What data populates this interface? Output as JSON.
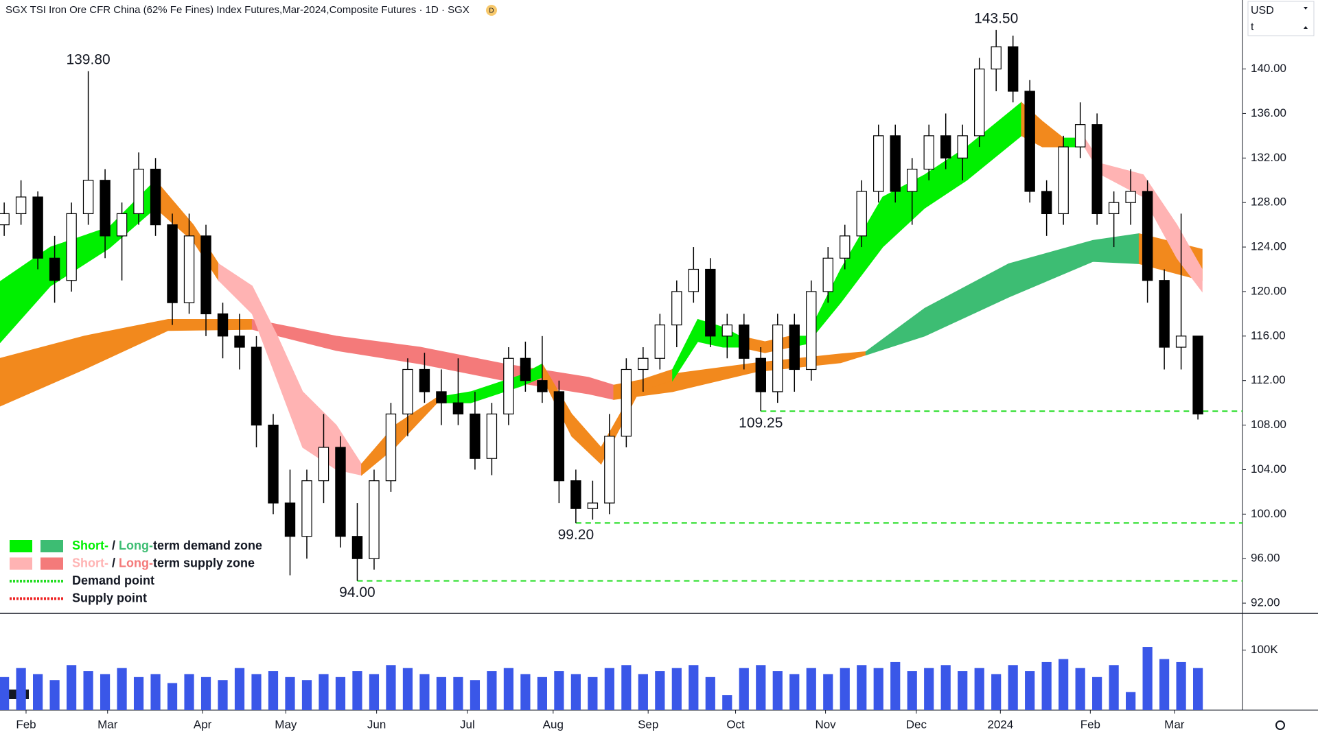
{
  "header": {
    "title": "SGX TSI Iron Ore CFR China (62% Fe Fines) Index Futures,Mar-2024,Composite Futures · 1D · SGX",
    "badge": "D",
    "currency": "USD",
    "unit": "t"
  },
  "chart_data": {
    "type": "candlestick",
    "x": [
      0,
      1,
      2,
      3,
      4,
      5,
      6,
      7,
      8,
      9,
      10,
      11,
      12,
      13,
      14,
      15,
      16,
      17,
      18,
      19,
      20,
      21,
      22,
      23,
      24,
      25,
      26,
      27,
      28,
      29,
      30,
      31,
      32,
      33,
      34,
      35,
      36,
      37,
      38,
      39,
      40,
      41,
      42,
      43,
      44,
      45,
      46,
      47,
      48,
      49,
      50,
      51,
      52,
      53,
      54,
      55,
      56,
      57,
      58,
      59,
      60,
      61,
      62,
      63,
      64,
      65,
      66,
      67,
      68,
      69,
      70,
      71
    ],
    "open": [
      126,
      127,
      128.5,
      123,
      121,
      127,
      130,
      125,
      127,
      131,
      126,
      119,
      125,
      118,
      116,
      115,
      108,
      101,
      98,
      103,
      106,
      98,
      96,
      103,
      109,
      113,
      111,
      110,
      109,
      105,
      109,
      114,
      112,
      111,
      103,
      100.5,
      101,
      107,
      113,
      114,
      117,
      120,
      122,
      116,
      117,
      114,
      111,
      117,
      113,
      120,
      123,
      125,
      129,
      134,
      129,
      131,
      134,
      132,
      134,
      140,
      142,
      138,
      129,
      127,
      133,
      135,
      127,
      128,
      129,
      121,
      115,
      116
    ],
    "high": [
      128,
      130,
      129,
      125,
      128,
      139.8,
      131,
      128,
      132.5,
      132,
      127,
      127,
      126,
      119,
      118,
      116,
      109,
      104,
      104,
      109,
      107,
      101,
      104,
      110,
      114,
      114.5,
      113,
      114,
      111,
      110,
      115,
      115.5,
      116,
      112,
      104,
      103,
      109,
      114,
      115,
      118,
      121,
      124,
      123,
      118,
      118,
      115,
      118,
      118,
      121,
      124,
      126,
      130,
      135,
      135,
      132,
      135,
      136,
      135,
      141,
      143.5,
      143,
      139,
      130,
      134,
      137,
      136,
      129,
      131,
      130,
      122,
      127,
      116
    ],
    "low": [
      125,
      126,
      122,
      119,
      120,
      126,
      123,
      121,
      126,
      125,
      117,
      118,
      116,
      114,
      113,
      106,
      100,
      94.5,
      96,
      101,
      97,
      94,
      95,
      102,
      107,
      110,
      108,
      108,
      104,
      103.5,
      108,
      111,
      110,
      101,
      99.2,
      99.5,
      100,
      106,
      111,
      113,
      115,
      119,
      115,
      114,
      113,
      109.25,
      110,
      111,
      112,
      119,
      122,
      124,
      128,
      128,
      126,
      130,
      131,
      130,
      133,
      138,
      137,
      128,
      125,
      126,
      132,
      126,
      124,
      126,
      119,
      113,
      113,
      108.5
    ],
    "close": [
      127,
      128.5,
      123,
      121,
      127,
      130,
      125,
      127,
      131,
      126,
      119,
      125,
      118,
      116,
      115,
      108,
      101,
      98,
      103,
      106,
      98,
      96,
      103,
      109,
      113,
      111,
      110,
      109,
      105,
      109,
      114,
      112,
      111,
      103,
      100.5,
      101,
      107,
      113,
      114,
      117,
      120,
      122,
      116,
      117,
      114,
      111,
      117,
      113,
      120,
      123,
      125,
      129,
      134,
      129,
      131,
      134,
      132,
      134,
      140,
      142,
      138,
      129,
      127,
      133,
      135,
      127,
      128,
      129,
      121,
      115,
      116,
      109
    ],
    "up_color": "#ffffff",
    "down_color": "#000000",
    "xlim": [
      -0.25,
      73.65
    ],
    "xticks": [
      {
        "value": 1.3,
        "label": "Feb"
      },
      {
        "value": 6.15,
        "label": "Mar"
      },
      {
        "value": 11.8,
        "label": "Apr"
      },
      {
        "value": 16.75,
        "label": "May"
      },
      {
        "value": 22.15,
        "label": "Jun"
      },
      {
        "value": 27.55,
        "label": "Jul"
      },
      {
        "value": 32.65,
        "label": "Aug"
      },
      {
        "value": 38.3,
        "label": "Sep"
      },
      {
        "value": 43.5,
        "label": "Oct"
      },
      {
        "value": 48.85,
        "label": "Nov"
      },
      {
        "value": 54.25,
        "label": "Dec"
      },
      {
        "value": 59.25,
        "label": "2024"
      },
      {
        "value": 64.6,
        "label": "Feb"
      },
      {
        "value": 69.6,
        "label": "Mar"
      }
    ],
    "ylim": [
      91.08,
      146.2
    ],
    "yticks": [
      {
        "value": 92,
        "label": "92.00"
      },
      {
        "value": 96,
        "label": "96.00"
      },
      {
        "value": 100,
        "label": "100.00"
      },
      {
        "value": 104,
        "label": "104.00"
      },
      {
        "value": 108,
        "label": "108.00"
      },
      {
        "value": 112,
        "label": "112.00"
      },
      {
        "value": 116,
        "label": "116.00"
      },
      {
        "value": 120,
        "label": "120.00"
      },
      {
        "value": 124,
        "label": "124.00"
      },
      {
        "value": 128,
        "label": "128.00"
      },
      {
        "value": 132,
        "label": "132.00"
      },
      {
        "value": 136,
        "label": "136.00"
      },
      {
        "value": 140,
        "label": "140.00"
      }
    ],
    "zones": [
      {
        "color": "#f2891d",
        "x": [
          -0.25,
          4.75,
          9.75,
          14.75
        ],
        "upper": [
          114,
          116,
          117.5,
          117.5
        ],
        "lower": [
          109.7,
          113,
          116.5,
          116.6
        ]
      },
      {
        "color": "#f47a7a",
        "x": [
          14.75,
          19.75,
          24.75,
          29.75,
          34.75,
          36.25
        ],
        "upper": [
          117.5,
          116,
          115,
          113.5,
          112.3,
          111.6
        ],
        "lower": [
          116.6,
          114.7,
          113.5,
          112,
          110.8,
          110.3
        ]
      },
      {
        "color": "#f2891d",
        "x": [
          36.25,
          39.75,
          44.75,
          49.75,
          51.25
        ],
        "upper": [
          111.6,
          112.6,
          113.6,
          114.4,
          114.6
        ],
        "lower": [
          110.3,
          111,
          112.8,
          113.6,
          114.3
        ]
      },
      {
        "color": "#3dbd73",
        "x": [
          51.25,
          54.75,
          59.75,
          64.75,
          67.5
        ],
        "upper": [
          114.6,
          118.5,
          122.5,
          124.6,
          125.2
        ],
        "lower": [
          114.3,
          116,
          119.5,
          122.7,
          122.5
        ]
      },
      {
        "color": "#f2891d",
        "x": [
          67.5,
          71.25
        ],
        "upper": [
          125.2,
          123.8
        ],
        "lower": [
          122.5,
          121
        ]
      },
      {
        "color": "#00f000",
        "x": [
          -0.25,
          2.75,
          6.25,
          9
        ],
        "upper": [
          120.9,
          124,
          125.8,
          130
        ],
        "lower": [
          115.4,
          120.5,
          123.9,
          127.5
        ]
      },
      {
        "color": "#f2891d",
        "x": [
          9,
          11.25,
          12.75
        ],
        "upper": [
          130,
          126,
          122.5
        ],
        "lower": [
          127.5,
          124.5,
          121
        ]
      },
      {
        "color": "#ffb3b3",
        "x": [
          12.75,
          14.75,
          16.25,
          17.75,
          19.75,
          21.25
        ],
        "upper": [
          122.5,
          120.5,
          116,
          111,
          108,
          104.5
        ],
        "lower": [
          121,
          118,
          112,
          106,
          104,
          103.5
        ]
      },
      {
        "color": "#f2891d",
        "x": [
          21.25,
          23.25,
          25.75
        ],
        "upper": [
          104.5,
          108,
          110.5
        ],
        "lower": [
          103.5,
          106,
          110
        ]
      },
      {
        "color": "#00f000",
        "x": [
          25.75,
          27.75,
          30.75,
          32
        ],
        "upper": [
          110.5,
          111,
          112.5,
          113.5
        ],
        "lower": [
          110,
          110,
          111.5,
          112.3
        ]
      },
      {
        "color": "#f2891d",
        "x": [
          32,
          33.75,
          35.5
        ],
        "upper": [
          113.5,
          109,
          106
        ],
        "lower": [
          112.3,
          107,
          104.5
        ]
      },
      {
        "color": "#f2891d",
        "x": [
          35.5,
          37.75,
          39.75
        ],
        "upper": [
          106,
          112,
          113
        ],
        "lower": [
          104.5,
          111,
          112
        ]
      },
      {
        "color": "#00f000",
        "x": [
          39.75,
          41.25,
          42.75,
          43.75
        ],
        "upper": [
          113,
          117.5,
          116.8,
          116
        ],
        "lower": [
          112,
          115.5,
          115,
          115
        ]
      },
      {
        "color": "#f2891d",
        "x": [
          43.75,
          45.25,
          46.75
        ],
        "upper": [
          116,
          115.5,
          116
        ],
        "lower": [
          115,
          114.5,
          115
        ]
      },
      {
        "color": "#00f000",
        "x": [
          46.75,
          47.75,
          49.75,
          52.25,
          54.75,
          57.25,
          60.5
        ],
        "upper": [
          116,
          116,
          122,
          128.5,
          130.5,
          133,
          137
        ],
        "lower": [
          115,
          115.3,
          119,
          124,
          127.5,
          130,
          134
        ]
      },
      {
        "color": "#f2891d",
        "x": [
          60.5,
          61.75,
          63
        ],
        "upper": [
          137,
          135.3,
          133.8
        ],
        "lower": [
          134,
          133,
          133
        ]
      },
      {
        "color": "#00f000",
        "x": [
          63,
          64.25
        ],
        "upper": [
          133.8,
          133.8
        ],
        "lower": [
          133,
          133
        ]
      },
      {
        "color": "#ffb3b3",
        "x": [
          64.25,
          65.25,
          67.75,
          69.75,
          71.25
        ],
        "upper": [
          133.8,
          131.5,
          130.5,
          126,
          122
        ],
        "lower": [
          133,
          130.5,
          128.5,
          123,
          120
        ]
      }
    ],
    "demand_lines": [
      {
        "y": 109.25,
        "x0": 45,
        "color": "#22dd22"
      },
      {
        "y": 99.2,
        "x0": 34,
        "color": "#22dd22"
      },
      {
        "y": 94,
        "x0": 21,
        "color": "#22dd22"
      }
    ],
    "annotations": [
      {
        "label": "139.80",
        "x": 5,
        "value": 139.8,
        "position": "above"
      },
      {
        "label": "143.50",
        "x": 59,
        "value": 143.5,
        "position": "above"
      },
      {
        "label": "94.00",
        "x": 21,
        "value": 94,
        "position": "below"
      },
      {
        "label": "99.20",
        "x": 34,
        "value": 99.2,
        "position": "below"
      },
      {
        "label": "109.25",
        "x": 45,
        "value": 109.25,
        "position": "below"
      }
    ],
    "volume": {
      "color": "#3a57e8",
      "ylim": [
        0,
        161000
      ],
      "yticks": [
        {
          "value": 100000,
          "label": "100K"
        }
      ],
      "values": [
        55000,
        70000,
        60000,
        50000,
        75000,
        65000,
        60000,
        70000,
        55000,
        60000,
        45000,
        60000,
        55000,
        50000,
        70000,
        60000,
        65000,
        55000,
        50000,
        60000,
        55000,
        65000,
        60000,
        75000,
        70000,
        60000,
        55000,
        55000,
        50000,
        65000,
        70000,
        60000,
        55000,
        65000,
        60000,
        55000,
        70000,
        75000,
        60000,
        65000,
        70000,
        75000,
        55000,
        25000,
        70000,
        75000,
        65000,
        60000,
        70000,
        60000,
        70000,
        75000,
        70000,
        80000,
        65000,
        70000,
        75000,
        65000,
        70000,
        60000,
        75000,
        65000,
        80000,
        85000,
        70000,
        55000,
        75000,
        30000,
        105000,
        85000,
        80000,
        70000
      ]
    },
    "legend": [
      {
        "swatches": [
          "#00f000",
          "#3dbd73"
        ],
        "parts": [
          {
            "text": "Short-",
            "color": "#00f000"
          },
          {
            "text": " / "
          },
          {
            "text": "Long-",
            "color": "#3dbd73"
          },
          {
            "text": "term demand zone"
          }
        ]
      },
      {
        "swatches": [
          "#ffb3b3",
          "#f47a7a"
        ],
        "parts": [
          {
            "text": "Short-",
            "color": "#ffb3b3"
          },
          {
            "text": " / "
          },
          {
            "text": "Long-",
            "color": "#f47a7a"
          },
          {
            "text": "term supply zone"
          }
        ]
      },
      {
        "dotted": "#22dd22",
        "parts": [
          {
            "text": "Demand point"
          }
        ]
      },
      {
        "dotted": "#ee2222",
        "parts": [
          {
            "text": "Supply point"
          }
        ]
      }
    ]
  }
}
